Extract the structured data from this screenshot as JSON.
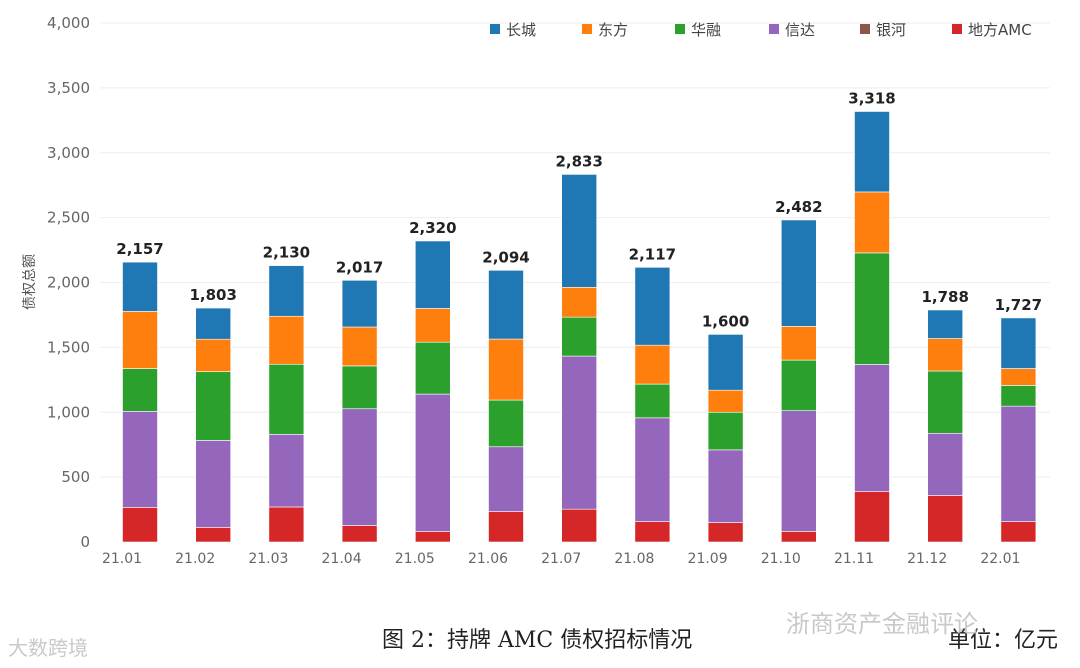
{
  "chart_data": {
    "type": "bar",
    "stacked": true,
    "ylabel": "债权总额",
    "ylim": [
      0,
      4000
    ],
    "yticks": [
      0,
      500,
      1000,
      1500,
      2000,
      2500,
      3000,
      3500,
      4000
    ],
    "ytick_labels": [
      "0",
      "500",
      "1,000",
      "1,500",
      "2,000",
      "2,500",
      "3,000",
      "3,500",
      "4,000"
    ],
    "categories": [
      "21.01",
      "21.02",
      "21.03",
      "21.04",
      "21.05",
      "21.06",
      "21.07",
      "21.08",
      "21.09",
      "21.10",
      "21.11",
      "21.12",
      "22.01"
    ],
    "totals": [
      2157,
      1803,
      2130,
      2017,
      2320,
      2094,
      2833,
      2117,
      1600,
      2482,
      3318,
      1788,
      1727
    ],
    "total_labels": [
      "2,157",
      "1,803",
      "2,130",
      "2,017",
      "2,320",
      "2,094",
      "2,833",
      "2,117",
      "1,600",
      "2,482",
      "3,318",
      "1,788",
      "1,727"
    ],
    "stack_order": [
      "地方AMC",
      "银河",
      "信达",
      "华融",
      "东方",
      "长城"
    ],
    "series": [
      {
        "name": "长城",
        "color": "#1f77b4",
        "values": [
          380,
          240,
          390,
          360,
          520,
          530,
          870,
          600,
          430,
          820,
          620,
          220,
          390
        ]
      },
      {
        "name": "东方",
        "color": "#ff7f0e",
        "values": [
          440,
          250,
          370,
          300,
          260,
          470,
          230,
          300,
          170,
          260,
          470,
          250,
          130
        ]
      },
      {
        "name": "华融",
        "color": "#2ca02c",
        "values": [
          330,
          530,
          540,
          330,
          400,
          360,
          300,
          260,
          290,
          390,
          860,
          480,
          160
        ]
      },
      {
        "name": "信达",
        "color": "#9467bd",
        "values": [
          740,
          670,
          560,
          900,
          1060,
          500,
          1180,
          800,
          560,
          930,
          980,
          480,
          890
        ]
      },
      {
        "name": "银河",
        "color": "#8c564b",
        "values": [
          0,
          0,
          0,
          0,
          0,
          0,
          0,
          0,
          0,
          0,
          0,
          0,
          0
        ]
      },
      {
        "name": "地方AMC",
        "color": "#d62728",
        "values": [
          267,
          113,
          270,
          127,
          80,
          234,
          253,
          157,
          150,
          82,
          388,
          358,
          157
        ]
      }
    ],
    "legend_position": "top-right",
    "grid": true
  },
  "caption": "图 2：持牌 AMC 债权招标情况",
  "unit": "单位：亿元",
  "watermark_1": "浙商资产金融评论",
  "watermark_2": "大数跨境"
}
